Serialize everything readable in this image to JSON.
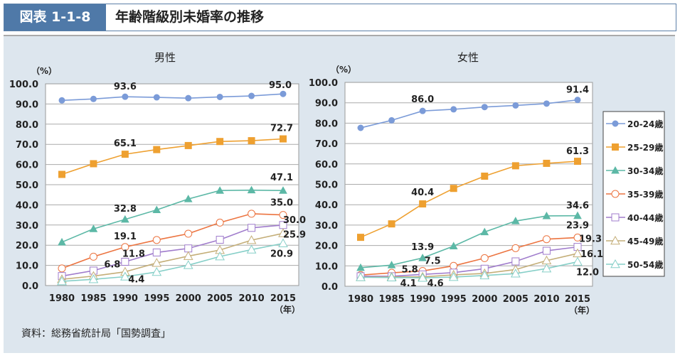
{
  "header": {
    "figure_number": "図表 1-1-8",
    "title": "年齢階級別未婚率の推移"
  },
  "source": "資料：総務省統計局「国勢調査」",
  "colors": {
    "20-24歳": "#7b9bd8",
    "25-29歳": "#eea030",
    "30-34歳": "#5cb8a6",
    "35-39歳": "#ec7440",
    "40-44歳": "#a07ccc",
    "45-49歳": "#c4ae78",
    "50-54歳": "#86cfc8"
  },
  "chart_data": [
    {
      "type": "line",
      "title": "男性",
      "ylabel": "（%）",
      "xlabel": "（年）",
      "ylim": [
        0,
        100
      ],
      "yticks": [
        "0.0",
        "10.0",
        "20.0",
        "30.0",
        "40.0",
        "50.0",
        "60.0",
        "70.0",
        "80.0",
        "90.0",
        "100.0"
      ],
      "grid": true,
      "x": [
        "1980",
        "1985",
        "1990",
        "1995",
        "2000",
        "2005",
        "2010",
        "2015"
      ],
      "series": [
        {
          "name": "20-24歳",
          "marker": "circle-filled",
          "values": [
            91.8,
            92.5,
            93.6,
            93.3,
            92.9,
            93.5,
            94.0,
            95.0
          ]
        },
        {
          "name": "25-29歳",
          "marker": "square-filled",
          "values": [
            55.1,
            60.4,
            65.1,
            67.4,
            69.4,
            71.4,
            71.8,
            72.7
          ]
        },
        {
          "name": "30-34歳",
          "marker": "triangle-filled",
          "values": [
            21.5,
            28.1,
            32.8,
            37.5,
            42.9,
            47.1,
            47.3,
            47.1
          ]
        },
        {
          "name": "35-39歳",
          "marker": "circle-open",
          "values": [
            8.5,
            14.3,
            19.1,
            22.6,
            25.7,
            31.2,
            35.6,
            35.0
          ]
        },
        {
          "name": "40-44歳",
          "marker": "square-open",
          "values": [
            4.7,
            7.4,
            11.8,
            16.4,
            18.4,
            22.7,
            28.6,
            30.0
          ]
        },
        {
          "name": "45-49歳",
          "marker": "triangle-open",
          "values": [
            3.1,
            4.7,
            6.8,
            11.2,
            14.6,
            17.6,
            22.5,
            25.9
          ]
        },
        {
          "name": "50-54歳",
          "marker": "triangle-open",
          "values": [
            2.1,
            3.1,
            4.4,
            6.7,
            10.1,
            14.4,
            17.8,
            20.9
          ]
        }
      ],
      "data_labels": [
        {
          "series": 0,
          "x": "1990",
          "text": "93.6"
        },
        {
          "series": 0,
          "x": "2015",
          "text": "95.0"
        },
        {
          "series": 1,
          "x": "1990",
          "text": "65.1"
        },
        {
          "series": 1,
          "x": "2015",
          "text": "72.7"
        },
        {
          "series": 2,
          "x": "1990",
          "text": "32.8"
        },
        {
          "series": 2,
          "x": "2015",
          "text": "47.1"
        },
        {
          "series": 3,
          "x": "1990",
          "text": "19.1"
        },
        {
          "series": 3,
          "x": "2015",
          "text": "35.0"
        },
        {
          "series": 4,
          "x": "1990",
          "text": "11.8"
        },
        {
          "series": 4,
          "x": "2015",
          "text": "30.0"
        },
        {
          "series": 5,
          "x": "1990",
          "text": "6.8"
        },
        {
          "series": 5,
          "x": "2015",
          "text": "25.9"
        },
        {
          "series": 6,
          "x": "1990",
          "text": "4.4"
        },
        {
          "series": 6,
          "x": "2015",
          "text": "20.9"
        }
      ]
    },
    {
      "type": "line",
      "title": "女性",
      "ylabel": "（%）",
      "xlabel": "（年）",
      "ylim": [
        0,
        100
      ],
      "yticks": [
        "0.0",
        "10.0",
        "20.0",
        "30.0",
        "40.0",
        "50.0",
        "60.0",
        "70.0",
        "80.0",
        "90.0",
        "100.0"
      ],
      "grid": true,
      "legend": "right",
      "x": [
        "1980",
        "1985",
        "1990",
        "1995",
        "2000",
        "2005",
        "2010",
        "2015"
      ],
      "series": [
        {
          "name": "20-24歳",
          "marker": "circle-filled",
          "values": [
            77.7,
            81.4,
            86.0,
            86.8,
            87.9,
            88.7,
            89.6,
            91.4
          ]
        },
        {
          "name": "25-29歳",
          "marker": "square-filled",
          "values": [
            24.0,
            30.6,
            40.4,
            48.0,
            54.0,
            59.1,
            60.3,
            61.3
          ]
        },
        {
          "name": "30-34歳",
          "marker": "triangle-filled",
          "values": [
            9.1,
            10.4,
            13.9,
            19.7,
            26.6,
            32.0,
            34.5,
            34.6
          ]
        },
        {
          "name": "35-39歳",
          "marker": "circle-open",
          "values": [
            5.5,
            6.6,
            7.5,
            10.0,
            13.8,
            18.7,
            23.1,
            23.9
          ]
        },
        {
          "name": "40-44歳",
          "marker": "square-open",
          "values": [
            4.9,
            4.9,
            5.8,
            6.7,
            8.6,
            12.2,
            17.4,
            19.3
          ]
        },
        {
          "name": "45-49歳",
          "marker": "triangle-open",
          "values": [
            4.4,
            4.6,
            4.6,
            5.6,
            6.3,
            8.2,
            12.6,
            16.1
          ]
        },
        {
          "name": "50-54歳",
          "marker": "triangle-open",
          "values": [
            4.4,
            4.3,
            4.1,
            4.5,
            5.3,
            6.2,
            8.7,
            12.0
          ]
        }
      ],
      "data_labels": [
        {
          "series": 0,
          "x": "1990",
          "text": "86.0"
        },
        {
          "series": 0,
          "x": "2015",
          "text": "91.4"
        },
        {
          "series": 1,
          "x": "1990",
          "text": "40.4"
        },
        {
          "series": 1,
          "x": "2015",
          "text": "61.3"
        },
        {
          "series": 2,
          "x": "1990",
          "text": "13.9"
        },
        {
          "series": 2,
          "x": "2015",
          "text": "34.6"
        },
        {
          "series": 3,
          "x": "1990",
          "text": "7.5"
        },
        {
          "series": 3,
          "x": "2015",
          "text": "23.9"
        },
        {
          "series": 4,
          "x": "1990",
          "text": "5.8"
        },
        {
          "series": 4,
          "x": "2015",
          "text": "19.3"
        },
        {
          "series": 5,
          "x": "1990",
          "text": "4.6"
        },
        {
          "series": 5,
          "x": "2015",
          "text": "16.1"
        },
        {
          "series": 6,
          "x": "1990",
          "text": "4.1"
        },
        {
          "series": 6,
          "x": "2015",
          "text": "12.0"
        }
      ]
    }
  ]
}
